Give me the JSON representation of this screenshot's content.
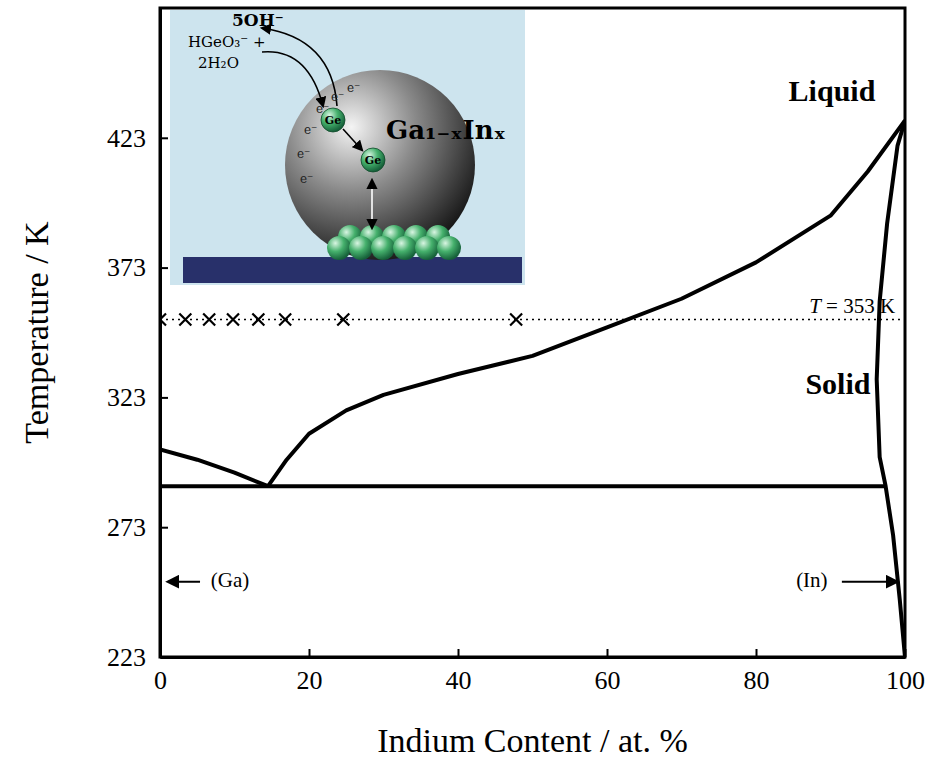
{
  "chart_data": {
    "type": "line",
    "x_label": "Indium Content / at. %",
    "y_label": "Temperature / K",
    "xlim": [
      0,
      100
    ],
    "ylim": [
      223,
      473
    ],
    "xticks": [
      0,
      20,
      40,
      60,
      80,
      100
    ],
    "yticks": [
      223,
      273,
      323,
      373,
      423
    ],
    "series": [
      {
        "type": "line",
        "line_style": "solid",
        "color": "#000000",
        "x": [
          0,
          5,
          10,
          14.5
        ],
        "values": [
          303,
          299,
          294,
          288.8
        ]
      },
      {
        "type": "line",
        "line_style": "solid",
        "color": "#000000",
        "x": [
          14.5,
          17,
          20,
          25,
          30,
          40,
          50,
          60,
          70,
          80,
          90,
          95,
          100
        ],
        "values": [
          288.8,
          299,
          309,
          318,
          324,
          332,
          339,
          350,
          361,
          375,
          393,
          410,
          429.7
        ]
      },
      {
        "type": "line",
        "line_style": "solid",
        "color": "#000000",
        "x": [
          0,
          97.4
        ],
        "values": [
          288.8,
          288.8
        ]
      },
      {
        "type": "line",
        "line_style": "solid",
        "color": "#000000",
        "x": [
          100,
          99,
          97.6,
          96.6,
          96.2,
          96.6,
          97.4,
          98.4,
          99.3,
          100
        ],
        "values": [
          429.7,
          420,
          390,
          360,
          330,
          300,
          288.8,
          270,
          245,
          223
        ]
      },
      {
        "type": "line",
        "line_style": "dotted",
        "color": "#000000",
        "x": [
          0,
          100
        ],
        "values": [
          353,
          353
        ]
      },
      {
        "type": "scatter",
        "marker": "x",
        "color": "#000000",
        "x": [
          0,
          3.4,
          6.6,
          9.8,
          13.2,
          16.8,
          24.6,
          47.8
        ],
        "values": [
          353,
          353,
          353,
          353,
          353,
          353,
          353,
          353
        ]
      }
    ],
    "annotations": [
      {
        "text": "Liquid",
        "x": 90.2,
        "y": 440
      },
      {
        "text": "Solid",
        "x": 91,
        "y": 327
      },
      {
        "text": "T = 353 K",
        "x": 92.9,
        "y": 357.6
      },
      {
        "text": "(Ga)",
        "x": 9.4,
        "y": 252
      },
      {
        "text": "(In)",
        "x": 87.5,
        "y": 252
      }
    ],
    "inset": {
      "labels": [
        "5OH⁻",
        "HGeO₃⁻ +",
        "2H₂O",
        "Ga₁₋ₓInₓ",
        "Ge",
        "Ge"
      ],
      "electrons": [
        "e⁻",
        "e⁻",
        "e⁻",
        "e⁻",
        "e⁻",
        "e⁻"
      ]
    }
  }
}
